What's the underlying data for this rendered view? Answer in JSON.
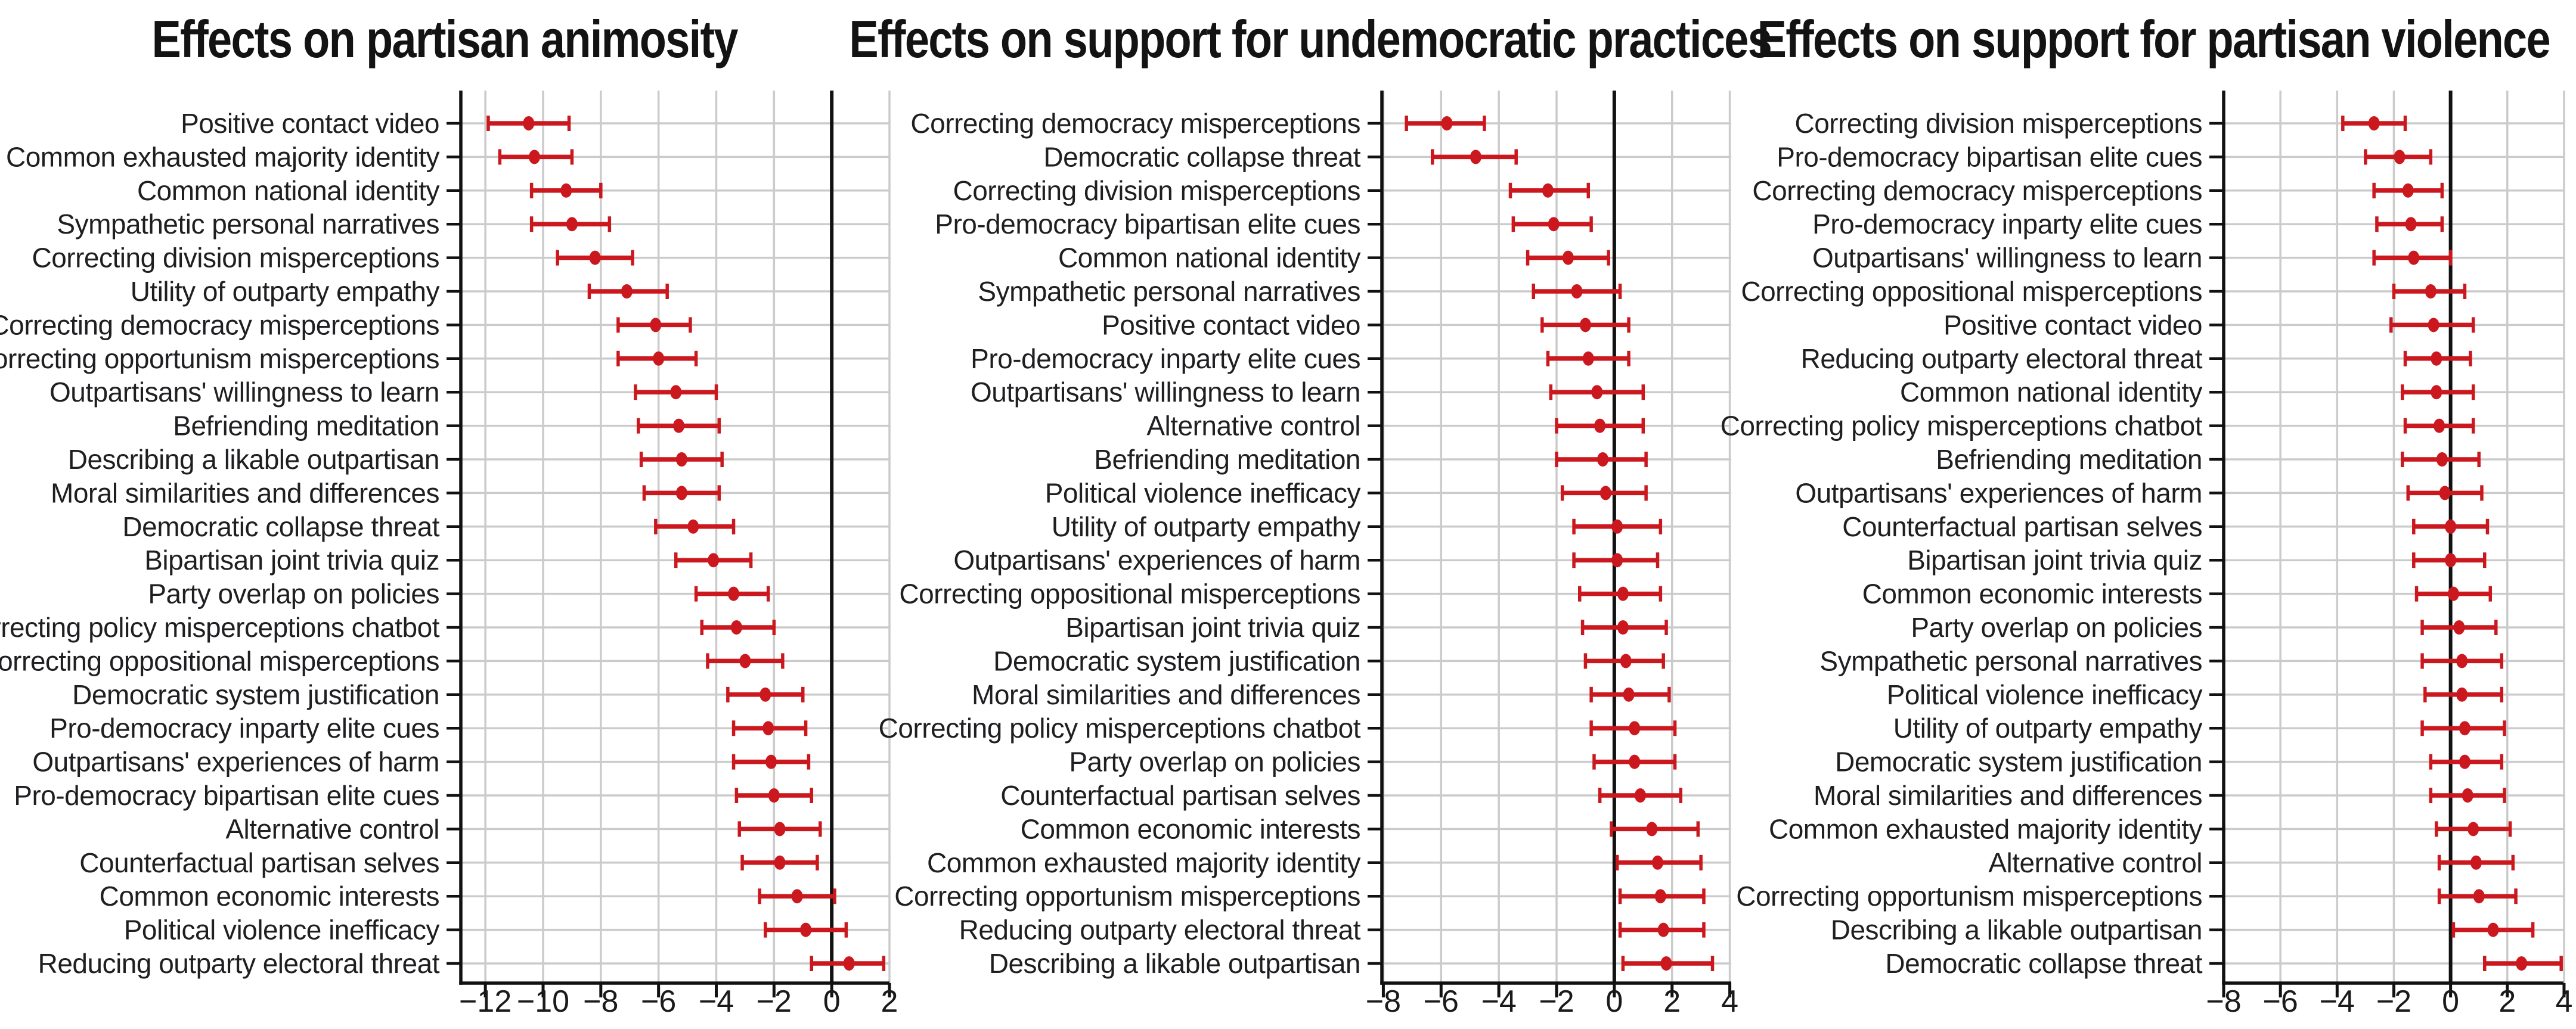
{
  "figure": {
    "background": "#ffffff"
  },
  "colors": {
    "point": "#cb181e",
    "grid": "#cbcbcb",
    "axis": "#111111",
    "zero_line": "#111111",
    "label_text": "#1f1f22",
    "tick_text": "#1a1a1a",
    "title_text": "#131313"
  },
  "chart_data": [
    {
      "type": "scatter",
      "variant": "forest-dot-whisker",
      "title": "Effects on partisan animosity",
      "xlabel": "",
      "ylabel": "",
      "xlim": [
        -12.85,
        2.0
      ],
      "xticks": [
        -12,
        -10,
        -8,
        -6,
        -4,
        -2,
        0,
        2
      ],
      "zero_line": 0,
      "grid": true,
      "legend": "none",
      "rows": [
        {
          "label": "Positive contact video",
          "value": -10.5,
          "ci": [
            -11.9,
            -9.1
          ]
        },
        {
          "label": "Common exhausted majority identity",
          "value": -10.3,
          "ci": [
            -11.5,
            -9.0
          ]
        },
        {
          "label": "Common national identity",
          "value": -9.2,
          "ci": [
            -10.4,
            -8.0
          ]
        },
        {
          "label": "Sympathetic personal narratives",
          "value": -9.0,
          "ci": [
            -10.4,
            -7.7
          ]
        },
        {
          "label": "Correcting division misperceptions",
          "value": -8.2,
          "ci": [
            -9.5,
            -6.9
          ]
        },
        {
          "label": "Utility of outparty empathy",
          "value": -7.1,
          "ci": [
            -8.4,
            -5.7
          ]
        },
        {
          "label": "Correcting democracy misperceptions",
          "value": -6.1,
          "ci": [
            -7.4,
            -4.9
          ]
        },
        {
          "label": "Correcting opportunism misperceptions",
          "value": -6.0,
          "ci": [
            -7.4,
            -4.7
          ]
        },
        {
          "label": "Outpartisans' willingness to learn",
          "value": -5.4,
          "ci": [
            -6.8,
            -4.0
          ]
        },
        {
          "label": "Befriending meditation",
          "value": -5.3,
          "ci": [
            -6.7,
            -3.9
          ]
        },
        {
          "label": "Describing a likable outpartisan",
          "value": -5.2,
          "ci": [
            -6.6,
            -3.8
          ]
        },
        {
          "label": "Moral similarities and differences",
          "value": -5.2,
          "ci": [
            -6.5,
            -3.9
          ]
        },
        {
          "label": "Democratic collapse threat",
          "value": -4.8,
          "ci": [
            -6.1,
            -3.4
          ]
        },
        {
          "label": "Bipartisan joint trivia quiz",
          "value": -4.1,
          "ci": [
            -5.4,
            -2.8
          ]
        },
        {
          "label": "Party overlap on policies",
          "value": -3.4,
          "ci": [
            -4.7,
            -2.2
          ]
        },
        {
          "label": "Correcting policy misperceptions chatbot",
          "value": -3.3,
          "ci": [
            -4.5,
            -2.0
          ]
        },
        {
          "label": "Correcting oppositional misperceptions",
          "value": -3.0,
          "ci": [
            -4.3,
            -1.7
          ]
        },
        {
          "label": "Democratic system justification",
          "value": -2.3,
          "ci": [
            -3.6,
            -1.0
          ]
        },
        {
          "label": "Pro-democracy inparty elite cues",
          "value": -2.2,
          "ci": [
            -3.4,
            -0.9
          ]
        },
        {
          "label": "Outpartisans' experiences of harm",
          "value": -2.1,
          "ci": [
            -3.4,
            -0.8
          ]
        },
        {
          "label": "Pro-democracy bipartisan elite cues",
          "value": -2.0,
          "ci": [
            -3.3,
            -0.7
          ]
        },
        {
          "label": "Alternative control",
          "value": -1.8,
          "ci": [
            -3.2,
            -0.4
          ]
        },
        {
          "label": "Counterfactual partisan selves",
          "value": -1.8,
          "ci": [
            -3.1,
            -0.5
          ]
        },
        {
          "label": "Common economic interests",
          "value": -1.2,
          "ci": [
            -2.5,
            0.1
          ]
        },
        {
          "label": "Political violence inefficacy",
          "value": -0.9,
          "ci": [
            -2.3,
            0.5
          ]
        },
        {
          "label": "Reducing outparty electoral threat",
          "value": 0.6,
          "ci": [
            -0.7,
            1.8
          ]
        }
      ]
    },
    {
      "type": "scatter",
      "variant": "forest-dot-whisker",
      "title": "Effects on support for undemocratic practices",
      "xlabel": "",
      "ylabel": "",
      "xlim": [
        -8.05,
        4.05
      ],
      "xticks": [
        -8,
        -6,
        -4,
        -2,
        0,
        2,
        4
      ],
      "zero_line": 0,
      "grid": true,
      "legend": "none",
      "rows": [
        {
          "label": "Correcting democracy misperceptions",
          "value": -5.8,
          "ci": [
            -7.2,
            -4.5
          ]
        },
        {
          "label": "Democratic collapse threat",
          "value": -4.8,
          "ci": [
            -6.3,
            -3.4
          ]
        },
        {
          "label": "Correcting division misperceptions",
          "value": -2.3,
          "ci": [
            -3.6,
            -0.9
          ]
        },
        {
          "label": "Pro-democracy bipartisan elite cues",
          "value": -2.1,
          "ci": [
            -3.5,
            -0.8
          ]
        },
        {
          "label": "Common national identity",
          "value": -1.6,
          "ci": [
            -3.0,
            -0.2
          ]
        },
        {
          "label": "Sympathetic personal narratives",
          "value": -1.3,
          "ci": [
            -2.8,
            0.2
          ]
        },
        {
          "label": "Positive contact video",
          "value": -1.0,
          "ci": [
            -2.5,
            0.5
          ]
        },
        {
          "label": "Pro-democracy inparty elite cues",
          "value": -0.9,
          "ci": [
            -2.3,
            0.5
          ]
        },
        {
          "label": "Outpartisans' willingness to learn",
          "value": -0.6,
          "ci": [
            -2.2,
            1.0
          ]
        },
        {
          "label": "Alternative control",
          "value": -0.5,
          "ci": [
            -2.0,
            1.0
          ]
        },
        {
          "label": "Befriending meditation",
          "value": -0.4,
          "ci": [
            -2.0,
            1.1
          ]
        },
        {
          "label": "Political violence inefficacy",
          "value": -0.3,
          "ci": [
            -1.8,
            1.1
          ]
        },
        {
          "label": "Utility of outparty empathy",
          "value": 0.1,
          "ci": [
            -1.4,
            1.6
          ]
        },
        {
          "label": "Outpartisans' experiences of harm",
          "value": 0.1,
          "ci": [
            -1.4,
            1.5
          ]
        },
        {
          "label": "Correcting oppositional misperceptions",
          "value": 0.3,
          "ci": [
            -1.2,
            1.6
          ]
        },
        {
          "label": "Bipartisan joint trivia quiz",
          "value": 0.3,
          "ci": [
            -1.1,
            1.8
          ]
        },
        {
          "label": "Democratic system justification",
          "value": 0.4,
          "ci": [
            -1.0,
            1.7
          ]
        },
        {
          "label": "Moral similarities and differences",
          "value": 0.5,
          "ci": [
            -0.8,
            1.9
          ]
        },
        {
          "label": "Correcting policy misperceptions chatbot",
          "value": 0.7,
          "ci": [
            -0.8,
            2.1
          ]
        },
        {
          "label": "Party overlap on policies",
          "value": 0.7,
          "ci": [
            -0.7,
            2.1
          ]
        },
        {
          "label": "Counterfactual partisan selves",
          "value": 0.9,
          "ci": [
            -0.5,
            2.3
          ]
        },
        {
          "label": "Common economic interests",
          "value": 1.3,
          "ci": [
            -0.1,
            2.9
          ]
        },
        {
          "label": "Common exhausted majority identity",
          "value": 1.5,
          "ci": [
            0.1,
            3.0
          ]
        },
        {
          "label": "Correcting opportunism misperceptions",
          "value": 1.6,
          "ci": [
            0.2,
            3.1
          ]
        },
        {
          "label": "Reducing outparty electoral threat",
          "value": 1.7,
          "ci": [
            0.2,
            3.1
          ]
        },
        {
          "label": "Describing a likable outpartisan",
          "value": 1.8,
          "ci": [
            0.3,
            3.4
          ]
        }
      ]
    },
    {
      "type": "scatter",
      "variant": "forest-dot-whisker",
      "title": "Effects on support for partisan violence",
      "xlabel": "",
      "ylabel": "",
      "xlim": [
        -8.0,
        3.98
      ],
      "xticks": [
        -8,
        -6,
        -4,
        -2,
        0,
        2,
        4
      ],
      "zero_line": 0,
      "grid": true,
      "legend": "none",
      "rows": [
        {
          "label": "Correcting division misperceptions",
          "value": -2.7,
          "ci": [
            -3.8,
            -1.6
          ]
        },
        {
          "label": "Pro-democracy bipartisan elite cues",
          "value": -1.8,
          "ci": [
            -3.0,
            -0.7
          ]
        },
        {
          "label": "Correcting democracy misperceptions",
          "value": -1.5,
          "ci": [
            -2.7,
            -0.3
          ]
        },
        {
          "label": "Pro-democracy inparty elite cues",
          "value": -1.4,
          "ci": [
            -2.6,
            -0.3
          ]
        },
        {
          "label": "Outpartisans' willingness to learn",
          "value": -1.3,
          "ci": [
            -2.7,
            0.0
          ]
        },
        {
          "label": "Correcting oppositional misperceptions",
          "value": -0.7,
          "ci": [
            -2.0,
            0.5
          ]
        },
        {
          "label": "Positive contact video",
          "value": -0.6,
          "ci": [
            -2.1,
            0.8
          ]
        },
        {
          "label": "Reducing outparty electoral threat",
          "value": -0.5,
          "ci": [
            -1.6,
            0.7
          ]
        },
        {
          "label": "Common national identity",
          "value": -0.5,
          "ci": [
            -1.7,
            0.8
          ]
        },
        {
          "label": "Correcting policy misperceptions chatbot",
          "value": -0.4,
          "ci": [
            -1.6,
            0.8
          ]
        },
        {
          "label": "Befriending meditation",
          "value": -0.3,
          "ci": [
            -1.7,
            1.0
          ]
        },
        {
          "label": "Outpartisans' experiences of harm",
          "value": -0.2,
          "ci": [
            -1.5,
            1.1
          ]
        },
        {
          "label": "Counterfactual partisan selves",
          "value": 0.0,
          "ci": [
            -1.3,
            1.3
          ]
        },
        {
          "label": "Bipartisan joint trivia quiz",
          "value": 0.0,
          "ci": [
            -1.3,
            1.2
          ]
        },
        {
          "label": "Common economic interests",
          "value": 0.1,
          "ci": [
            -1.2,
            1.4
          ]
        },
        {
          "label": "Party overlap on policies",
          "value": 0.3,
          "ci": [
            -1.0,
            1.6
          ]
        },
        {
          "label": "Sympathetic personal narratives",
          "value": 0.4,
          "ci": [
            -1.0,
            1.8
          ]
        },
        {
          "label": "Political violence inefficacy",
          "value": 0.4,
          "ci": [
            -0.9,
            1.8
          ]
        },
        {
          "label": "Utility of outparty empathy",
          "value": 0.5,
          "ci": [
            -1.0,
            1.9
          ]
        },
        {
          "label": "Democratic system justification",
          "value": 0.5,
          "ci": [
            -0.7,
            1.8
          ]
        },
        {
          "label": "Moral similarities and differences",
          "value": 0.6,
          "ci": [
            -0.7,
            1.9
          ]
        },
        {
          "label": "Common exhausted majority identity",
          "value": 0.8,
          "ci": [
            -0.5,
            2.1
          ]
        },
        {
          "label": "Alternative control",
          "value": 0.9,
          "ci": [
            -0.4,
            2.2
          ]
        },
        {
          "label": "Correcting opportunism misperceptions",
          "value": 1.0,
          "ci": [
            -0.4,
            2.3
          ]
        },
        {
          "label": "Describing a likable outpartisan",
          "value": 1.5,
          "ci": [
            0.1,
            2.9
          ]
        },
        {
          "label": "Democratic collapse threat",
          "value": 2.5,
          "ci": [
            1.2,
            3.9
          ]
        }
      ]
    }
  ]
}
